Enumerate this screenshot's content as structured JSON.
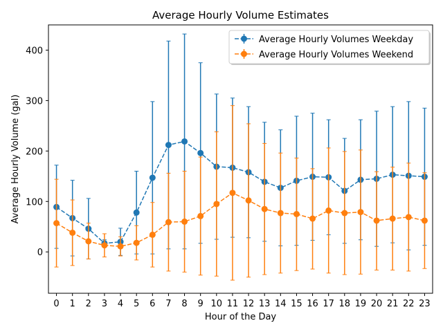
{
  "chart_data": {
    "type": "line",
    "title": "Average Hourly Volume Estimates",
    "xlabel": "Hour of the Day",
    "ylabel": "Average Hourly Volume (gal)",
    "categories": [
      "0",
      "1",
      "2",
      "3",
      "4",
      "5",
      "6",
      "7",
      "8",
      "9",
      "10",
      "11",
      "12",
      "13",
      "14",
      "15",
      "16",
      "17",
      "18",
      "19",
      "20",
      "21",
      "22",
      "23"
    ],
    "xlim": [
      -0.5,
      23.5
    ],
    "ylim": [
      -82,
      450
    ],
    "yticks": [
      0,
      100,
      200,
      300,
      400
    ],
    "grid": false,
    "legend_position": "top-right",
    "series": [
      {
        "name": "Average Hourly Volumes Weekday",
        "color": "#1f77b4",
        "values": [
          89,
          67,
          46,
          17,
          20,
          78,
          147,
          212,
          219,
          196,
          169,
          167,
          158,
          139,
          127,
          141,
          149,
          148,
          121,
          143,
          145,
          153,
          151,
          149
        ],
        "err_upper": [
          172,
          142,
          106,
          24,
          47,
          160,
          298,
          418,
          432,
          375,
          313,
          305,
          288,
          257,
          242,
          269,
          275,
          262,
          225,
          262,
          279,
          288,
          298,
          285
        ],
        "err_lower": [
          7,
          -8,
          -14,
          10,
          -7,
          -4,
          -4,
          6,
          6,
          17,
          25,
          29,
          28,
          21,
          12,
          13,
          23,
          34,
          17,
          24,
          11,
          18,
          4,
          13
        ]
      },
      {
        "name": "Average Hourly Volumes Weekend",
        "color": "#ff7f0e",
        "values": [
          57,
          38,
          21,
          13,
          11,
          18,
          34,
          59,
          60,
          71,
          95,
          117,
          102,
          85,
          77,
          75,
          66,
          82,
          77,
          79,
          62,
          66,
          69,
          62
        ],
        "err_upper": [
          144,
          103,
          57,
          36,
          30,
          52,
          98,
          156,
          160,
          188,
          238,
          290,
          254,
          215,
          196,
          186,
          165,
          206,
          199,
          202,
          159,
          168,
          176,
          157
        ],
        "err_lower": [
          -30,
          -27,
          -14,
          -10,
          -8,
          -16,
          -30,
          -38,
          -40,
          -46,
          -48,
          -56,
          -50,
          -45,
          -42,
          -37,
          -34,
          -42,
          -45,
          -44,
          -36,
          -36,
          -38,
          -33
        ]
      }
    ]
  }
}
